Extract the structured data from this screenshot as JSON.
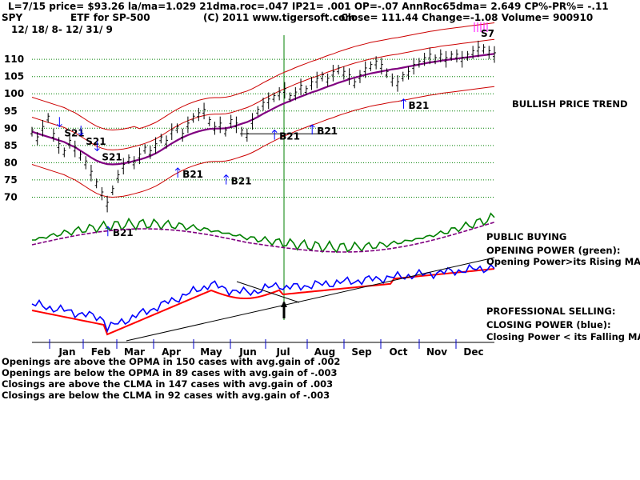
{
  "header": {
    "line1": "L=7/15  price= $93.26  la/ma=1.029 21dma.roc=.047 IP21= .001 OP=-.07 AnnRoc65dma= 2.649 CP%-PR%= -.11",
    "ticker": "SPY",
    "subtitle": "ETF for SP-500",
    "copyright": "(C) 2011 www.tigersoft.com",
    "quote": "Close=  111.44  Change=-1.08 Volume=  900910",
    "date_range": "12/ 18/ 8-  12/ 31/ 9"
  },
  "annotations": {
    "bullish": "BULLISH PRICE TREND",
    "public_buying": "PUBLIC BUYING",
    "opening_power": "OPENING POWER (green):",
    "opening_power_desc": "Opening Power>its Rising MA.",
    "professional_selling": "PROFESSIONAL SELLING:",
    "closing_power": "CLOSING POWER (blue):",
    "closing_power_desc": "Closing Power < its Falling MA."
  },
  "stats": [
    "Openings are above the OPMA in  150 cases with avg.gain of  .002",
    "Openings are below the OPMA in  89 cases with avg.gain of -.003",
    "Closings are above the CLMA in  147 cases with avg.gain of  .003",
    "Closings are below the CLMA in  92 cases with avg.gain of -.003"
  ],
  "colors": {
    "price_bars": "#000000",
    "bands": "#cc0000",
    "moving_avg": "#800080",
    "opening_power": "#008000",
    "opening_ma": "#800080",
    "closing_power": "#0000ff",
    "closing_ma": "#ff0000",
    "gridline": "#008000",
    "signal_buy": "#0000ff",
    "signal_sell": "#ff00ff",
    "july_marker": "#008000"
  },
  "chart_data": {
    "type": "line",
    "ylim": [
      65,
      117
    ],
    "yticks": [
      70,
      75,
      80,
      85,
      90,
      95,
      100,
      105,
      110
    ],
    "months": [
      "Jan",
      "Feb",
      "Mar",
      "Apr",
      "May",
      "Jun",
      "Jul",
      "Aug",
      "Sep",
      "Oct",
      "Nov",
      "Dec"
    ],
    "x_index": [
      0,
      3,
      6,
      9,
      12,
      15,
      18,
      21,
      24,
      27,
      30,
      33,
      36,
      39,
      42,
      45,
      48,
      51,
      54,
      57,
      60,
      63,
      66,
      69,
      72,
      75,
      78,
      81,
      84,
      87,
      90,
      93,
      96,
      99,
      102,
      105,
      108,
      111,
      114,
      117,
      120,
      123,
      126,
      129,
      132,
      135,
      138,
      141,
      144,
      147,
      150,
      153,
      156,
      159,
      162,
      165,
      168,
      171,
      174,
      177,
      180,
      183,
      186,
      189,
      192,
      195,
      198,
      201,
      204,
      207,
      210,
      213,
      216,
      219,
      222,
      225,
      228,
      231,
      234,
      237,
      240,
      243,
      246,
      249,
      252,
      255,
      258
    ],
    "series": [
      {
        "key": "price",
        "values": [
          89,
          87,
          90,
          93,
          88,
          85,
          83,
          86,
          84,
          82,
          80,
          77,
          74,
          71,
          68,
          72,
          76,
          79,
          81,
          80,
          82,
          84,
          83,
          85,
          87,
          86,
          89,
          90,
          88,
          91,
          93,
          94,
          95,
          92,
          90,
          91,
          89,
          92,
          91,
          89,
          88,
          92,
          95,
          97,
          98,
          99,
          100,
          101,
          99,
          100,
          102,
          101,
          103,
          104,
          105,
          104,
          106,
          107,
          106,
          105,
          103,
          105,
          107,
          108,
          109,
          108,
          106,
          104,
          103,
          105,
          106,
          108,
          109,
          110,
          111,
          110,
          111,
          110,
          111,
          111,
          110,
          111,
          112,
          113,
          113,
          112,
          111.4
        ]
      },
      {
        "key": "ma",
        "values": [
          89,
          88.5,
          88,
          87.5,
          87,
          86.5,
          86,
          85.2,
          84.5,
          83.5,
          82.5,
          81.5,
          80.6,
          80.0,
          79.6,
          79.5,
          79.6,
          79.8,
          80.1,
          80.5,
          80.9,
          81.4,
          82.0,
          82.7,
          83.6,
          84.6,
          85.6,
          86.5,
          87.3,
          88.0,
          88.6,
          89.1,
          89.5,
          89.8,
          89.9,
          89.9,
          90.0,
          90.3,
          90.8,
          91.3,
          91.8,
          92.5,
          93.3,
          94.2,
          95.0,
          95.8,
          96.6,
          97.3,
          97.9,
          98.6,
          99.2,
          99.8,
          100.4,
          100.9,
          101.5,
          102.1,
          102.6,
          103.2,
          103.7,
          104.2,
          104.7,
          105.1,
          105.5,
          105.9,
          106.2,
          106.5,
          106.8,
          107.1,
          107.3,
          107.6,
          107.9,
          108.2,
          108.5,
          108.8,
          109.1,
          109.3,
          109.6,
          109.8,
          110.0,
          110.2,
          110.4,
          110.6,
          110.8,
          111.0,
          111.2,
          111.4,
          111.6
        ]
      }
    ],
    "price_labels": [
      {
        "text": "S21",
        "i": 18,
        "v": 90,
        "dir": "down"
      },
      {
        "text": "S21",
        "i": 30,
        "v": 87.5,
        "dir": "down"
      },
      {
        "text": "S21",
        "i": 39,
        "v": 83,
        "dir": "down"
      },
      {
        "text": "B21",
        "i": 84,
        "v": 78,
        "dir": "up"
      },
      {
        "text": "B21",
        "i": 111,
        "v": 76,
        "dir": "up"
      },
      {
        "text": "B21",
        "i": 138,
        "v": 89,
        "dir": "up"
      },
      {
        "text": "B21",
        "i": 159,
        "v": 90.5,
        "dir": "up"
      },
      {
        "text": "B21",
        "i": 210,
        "v": 98,
        "dir": "up"
      },
      {
        "text": "B21",
        "i": 45,
        "v": 61,
        "dir": "up"
      }
    ],
    "signal_label": "S7"
  }
}
